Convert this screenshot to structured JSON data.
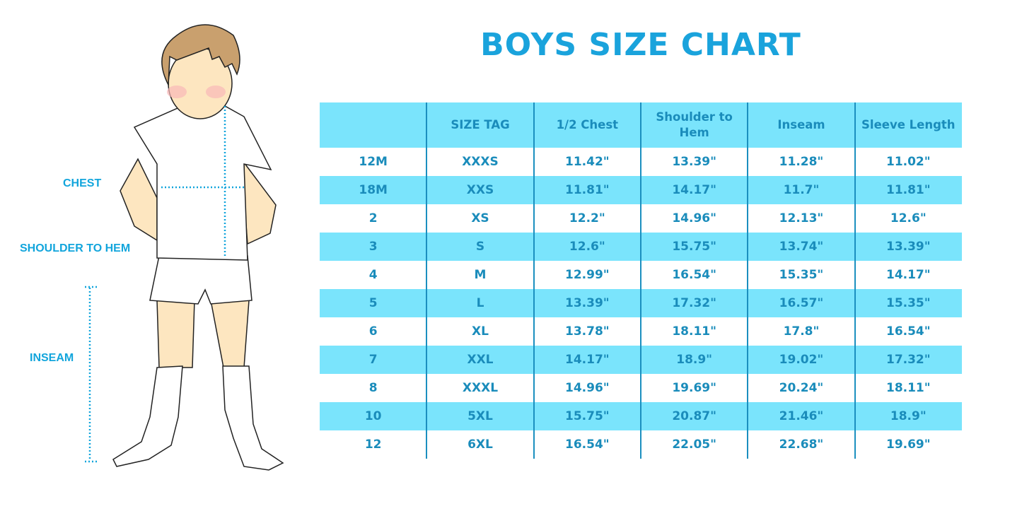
{
  "figure": {
    "labels": {
      "chest": "CHEST",
      "shoulder_to_hem": "SHOULDER TO HEM",
      "inseam": "INSEAM"
    },
    "colors": {
      "label": "#12a5dc",
      "hair": "#c9a06e",
      "skin": "#fde6c0",
      "measure_line": "#12a5dc"
    }
  },
  "chart_data": {
    "type": "table",
    "title": "BOYS SIZE CHART",
    "columns": [
      "",
      "SIZE TAG",
      "1/2 Chest",
      "Shoulder to Hem",
      "Inseam",
      "Sleeve Length"
    ],
    "rows": [
      [
        "12M",
        "XXXS",
        "11.42\"",
        "13.39\"",
        "11.28\"",
        "11.02\""
      ],
      [
        "18M",
        "XXS",
        "11.81\"",
        "14.17\"",
        "11.7\"",
        "11.81\""
      ],
      [
        "2",
        "XS",
        "12.2\"",
        "14.96\"",
        "12.13\"",
        "12.6\""
      ],
      [
        "3",
        "S",
        "12.6\"",
        "15.75\"",
        "13.74\"",
        "13.39\""
      ],
      [
        "4",
        "M",
        "12.99\"",
        "16.54\"",
        "15.35\"",
        "14.17\""
      ],
      [
        "5",
        "L",
        "13.39\"",
        "17.32\"",
        "16.57\"",
        "15.35\""
      ],
      [
        "6",
        "XL",
        "13.78\"",
        "18.11\"",
        "17.8\"",
        "16.54\""
      ],
      [
        "7",
        "XXL",
        "14.17\"",
        "18.9\"",
        "19.02\"",
        "17.32\""
      ],
      [
        "8",
        "XXXL",
        "14.96\"",
        "19.69\"",
        "20.24\"",
        "18.11\""
      ],
      [
        "10",
        "5XL",
        "15.75\"",
        "20.87\"",
        "21.46\"",
        "18.9\""
      ],
      [
        "12",
        "6XL",
        "16.54\"",
        "22.05\"",
        "22.68\"",
        "19.69\""
      ]
    ],
    "colors": {
      "title": "#1aa3dc",
      "header_bg": "#7ae4fc",
      "stripe_bg": "#7ae4fc",
      "text": "#1a8cbb",
      "divider": "#1b8fbf"
    }
  }
}
